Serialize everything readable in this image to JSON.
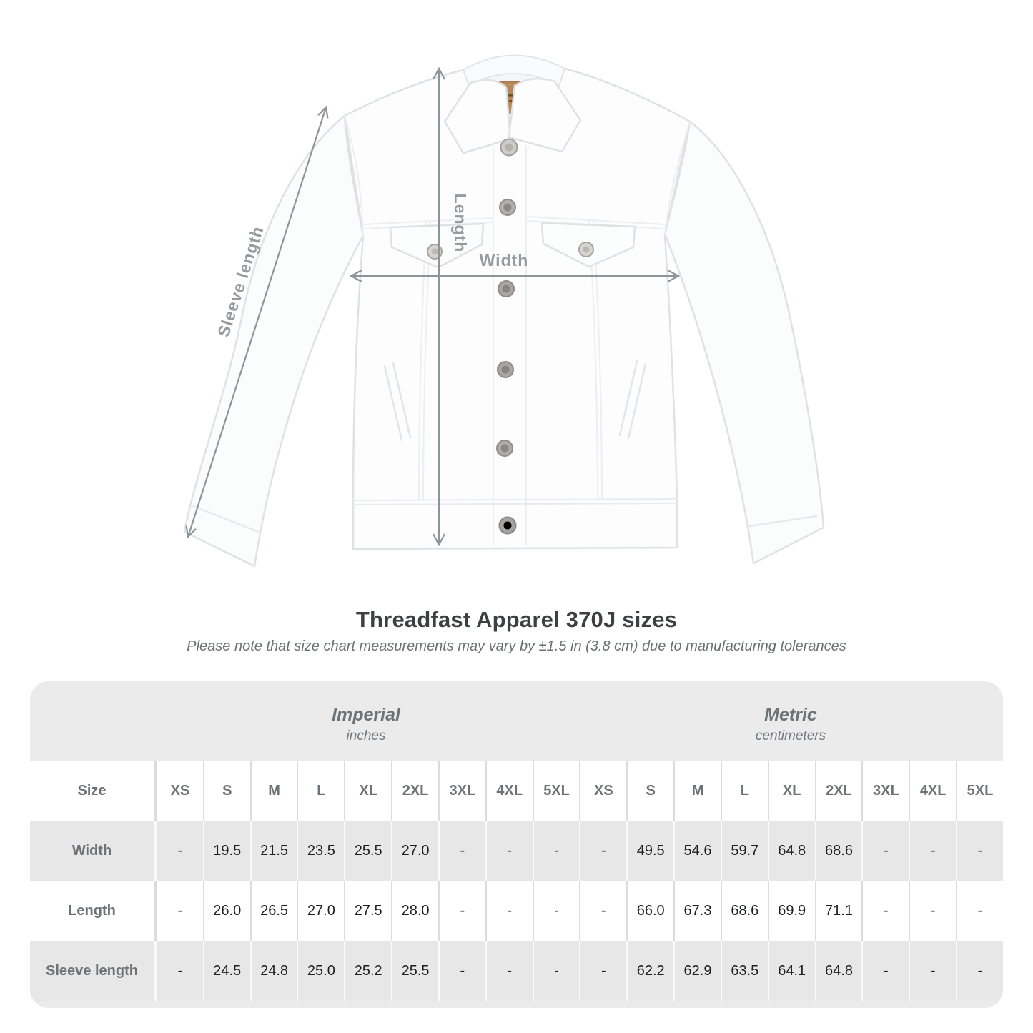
{
  "figure": {
    "length_label": "Length",
    "width_label": "Width",
    "sleeve_label": "Sleeve length"
  },
  "title": "Threadfast Apparel 370J sizes",
  "subtitle": "Please note that size chart measurements may vary by ±1.5 in (3.8 cm) due to manufacturing tolerances",
  "table": {
    "size_header": "Size",
    "unit_groups": [
      {
        "label": "Imperial",
        "sublabel": "inches"
      },
      {
        "label": "Metric",
        "sublabel": "centimeters"
      }
    ],
    "sizes": [
      "XS",
      "S",
      "M",
      "L",
      "XL",
      "2XL",
      "3XL",
      "4XL",
      "5XL"
    ],
    "rows": [
      {
        "label": "Width",
        "imperial": [
          "-",
          "19.5",
          "21.5",
          "23.5",
          "25.5",
          "27.0",
          "-",
          "-",
          "-"
        ],
        "metric": [
          "-",
          "49.5",
          "54.6",
          "59.7",
          "64.8",
          "68.6",
          "-",
          "-",
          "-"
        ]
      },
      {
        "label": "Length",
        "imperial": [
          "-",
          "26.0",
          "26.5",
          "27.0",
          "27.5",
          "28.0",
          "-",
          "-",
          "-"
        ],
        "metric": [
          "-",
          "66.0",
          "67.3",
          "68.6",
          "69.9",
          "71.1",
          "-",
          "-",
          "-"
        ]
      },
      {
        "label": "Sleeve length",
        "imperial": [
          "-",
          "24.5",
          "24.8",
          "25.0",
          "25.2",
          "25.5",
          "-",
          "-",
          "-"
        ],
        "metric": [
          "-",
          "62.2",
          "62.9",
          "63.5",
          "64.1",
          "64.8",
          "-",
          "-",
          "-"
        ]
      }
    ]
  },
  "chart_data": {
    "type": "table",
    "title": "Threadfast Apparel 370J sizes",
    "note": "Size chart measurements may vary by ±1.5 in (3.8 cm) due to manufacturing tolerances",
    "columns": [
      "XS",
      "S",
      "M",
      "L",
      "XL",
      "2XL",
      "3XL",
      "4XL",
      "5XL"
    ],
    "units": {
      "imperial": "inches",
      "metric": "centimeters"
    },
    "rows": [
      {
        "measure": "Width",
        "imperial": [
          null,
          19.5,
          21.5,
          23.5,
          25.5,
          27.0,
          null,
          null,
          null
        ],
        "metric": [
          null,
          49.5,
          54.6,
          59.7,
          64.8,
          68.6,
          null,
          null,
          null
        ]
      },
      {
        "measure": "Length",
        "imperial": [
          null,
          26.0,
          26.5,
          27.0,
          27.5,
          28.0,
          null,
          null,
          null
        ],
        "metric": [
          null,
          66.0,
          67.3,
          68.6,
          69.9,
          71.1,
          null,
          null,
          null
        ]
      },
      {
        "measure": "Sleeve length",
        "imperial": [
          null,
          24.5,
          24.8,
          25.0,
          25.2,
          25.5,
          null,
          null,
          null
        ],
        "metric": [
          null,
          62.2,
          62.9,
          63.5,
          64.1,
          64.8,
          null,
          null,
          null
        ]
      }
    ],
    "accent_colors": {
      "arrow_gray": "#8d9599",
      "patch_brown": "#b7875a",
      "table_gray": "#ebebeb"
    }
  }
}
